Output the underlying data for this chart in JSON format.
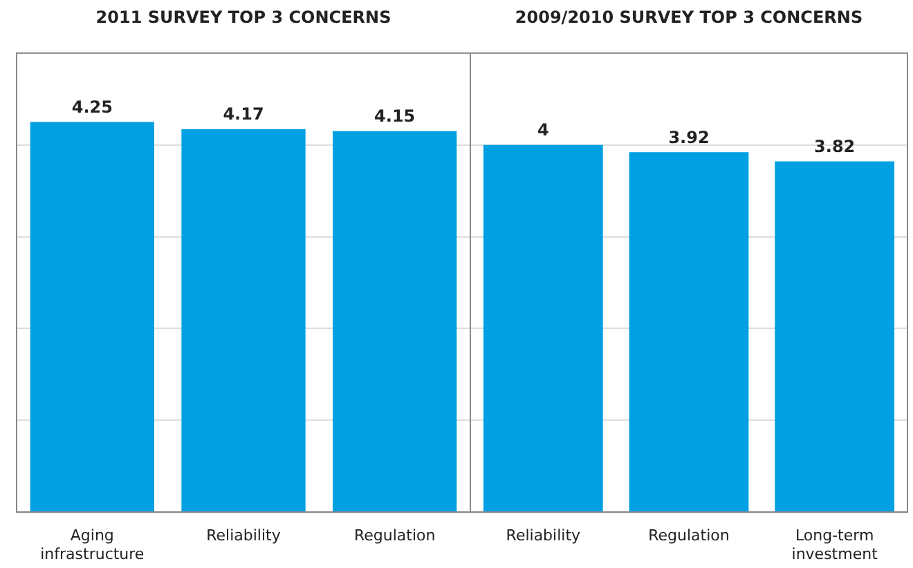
{
  "chart_data": [
    {
      "type": "bar",
      "title": "2011 SURVEY TOP 3 CONCERNS",
      "categories": [
        "Aging infrastructure",
        "Reliability",
        "Regulation"
      ],
      "values": [
        4.25,
        4.17,
        4.15
      ],
      "color": "#00a0e3",
      "data_labels": true,
      "ylim": [
        0,
        5
      ],
      "yticks": [
        {
          "value": 0,
          "label": null
        },
        {
          "value": 1,
          "label": null
        },
        {
          "value": 2,
          "label": null
        },
        {
          "value": 3,
          "label": null
        },
        {
          "value": 4,
          "label": null
        },
        {
          "value": 5,
          "label": null
        }
      ],
      "tick_labels": "x",
      "grid": "y",
      "legend": false
    },
    {
      "type": "bar",
      "title": "2009/2010 SURVEY TOP 3 CONCERNS",
      "categories": [
        "Reliability",
        "Regulation",
        "Long-term investment"
      ],
      "values": [
        4,
        3.92,
        3.82
      ],
      "color": "#00a0e3",
      "data_labels": true,
      "ylim": [
        0,
        5
      ],
      "yticks": [
        {
          "value": 0,
          "label": null
        },
        {
          "value": 1,
          "label": null
        },
        {
          "value": 2,
          "label": null
        },
        {
          "value": 3,
          "label": null
        },
        {
          "value": 4,
          "label": null
        },
        {
          "value": 5,
          "label": null
        }
      ],
      "tick_labels": "x",
      "grid": "y",
      "legend": false
    }
  ]
}
